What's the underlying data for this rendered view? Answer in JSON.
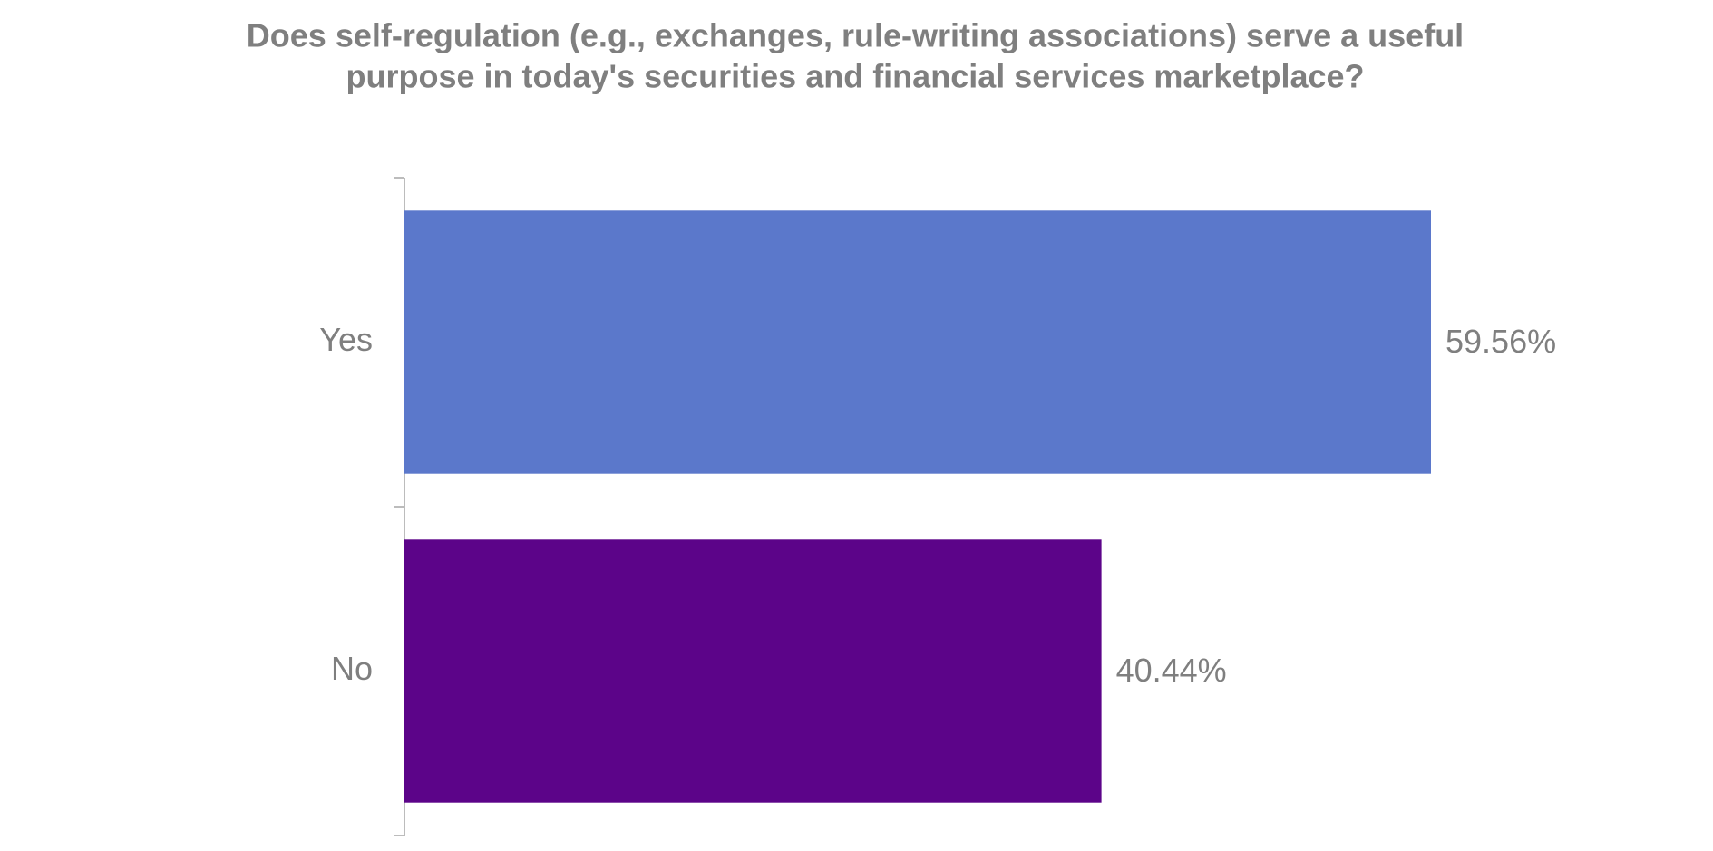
{
  "chart_data": {
    "type": "hbar",
    "title": [
      "Does self-regulation (e.g., exchanges, rule-writing associations) serve a useful",
      "purpose in today's securities and financial services marketplace?"
    ],
    "categories": [
      "Yes",
      "No"
    ],
    "values": [
      59.56,
      40.44
    ],
    "value_labels": [
      "59.56%",
      "40.44%"
    ],
    "colors": [
      "#5b78cb",
      "#5c0489"
    ]
  }
}
